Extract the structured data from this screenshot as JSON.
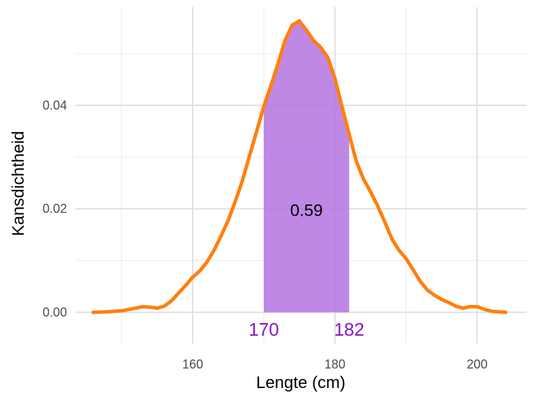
{
  "chart_data": {
    "type": "area",
    "xlabel": "Lengte (cm)",
    "ylabel": "Kansdichtheid",
    "xlim": [
      143.5,
      207
    ],
    "ylim": [
      -0.006,
      0.059
    ],
    "x_ticks": [
      160,
      180,
      200
    ],
    "x_tick_labels": [
      "160",
      "180",
      "200"
    ],
    "x_minor_gridlines": [
      150,
      170,
      190
    ],
    "y_ticks": [
      0.0,
      0.02,
      0.04
    ],
    "y_tick_labels": [
      "0.00",
      "0.02",
      "0.04"
    ],
    "y_minor_gridlines": [
      0.01,
      0.03,
      0.05
    ],
    "grid": true,
    "series": [
      {
        "x": [
          146,
          148,
          150,
          152,
          153,
          154,
          155,
          156,
          157,
          158,
          159,
          160,
          161,
          162,
          163,
          164,
          165,
          166,
          167,
          168,
          169,
          170,
          171,
          172,
          173,
          174,
          175,
          176,
          177,
          178,
          179,
          180,
          181,
          182,
          183,
          184,
          185,
          186,
          187,
          188,
          189,
          190,
          191,
          192,
          193,
          194,
          195,
          196,
          197,
          198,
          199,
          200,
          201,
          202,
          203,
          204
        ],
        "y": [
          0.0,
          0.0001,
          0.0003,
          0.0008,
          0.0011,
          0.001,
          0.0008,
          0.0012,
          0.0022,
          0.0037,
          0.0052,
          0.0068,
          0.008,
          0.0097,
          0.012,
          0.0148,
          0.0178,
          0.0215,
          0.0255,
          0.0303,
          0.035,
          0.0398,
          0.0438,
          0.0481,
          0.0526,
          0.0555,
          0.0563,
          0.0545,
          0.0525,
          0.0512,
          0.0492,
          0.0452,
          0.0397,
          0.0344,
          0.0292,
          0.0258,
          0.0233,
          0.0206,
          0.0175,
          0.0142,
          0.012,
          0.0104,
          0.0082,
          0.006,
          0.0043,
          0.0033,
          0.0025,
          0.0019,
          0.0012,
          0.0008,
          0.0011,
          0.0011,
          0.0006,
          0.0002,
          0.0001,
          0.0
        ],
        "color": "#FF7F0E"
      }
    ],
    "shaded_region": {
      "from": 170,
      "to": 182,
      "probability_label": "0.59",
      "bound_labels": [
        "170",
        "182"
      ],
      "fill_color": "#B473E0",
      "label_color": "#8A17C0"
    }
  }
}
